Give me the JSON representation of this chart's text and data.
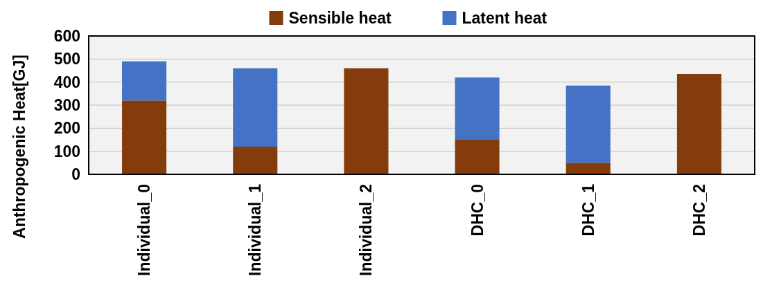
{
  "chart_data": {
    "type": "bar",
    "stacked": true,
    "ylabel": "Anthropogenic Heat[GJ]",
    "categories": [
      "Individual_0",
      "Individual_1",
      "Individual_2",
      "DHC_0",
      "DHC_1",
      "DHC_2"
    ],
    "series": [
      {
        "name": "Sensible heat",
        "color": "#843c0c",
        "values": [
          320,
          120,
          460,
          150,
          50,
          435
        ]
      },
      {
        "name": "Latent heat",
        "color": "#4472c4",
        "values": [
          170,
          340,
          0,
          270,
          335,
          0
        ]
      }
    ],
    "ylim": [
      0,
      600
    ],
    "yticks": [
      0,
      100,
      200,
      300,
      400,
      500,
      600
    ],
    "grid": "y",
    "legend": "top"
  }
}
